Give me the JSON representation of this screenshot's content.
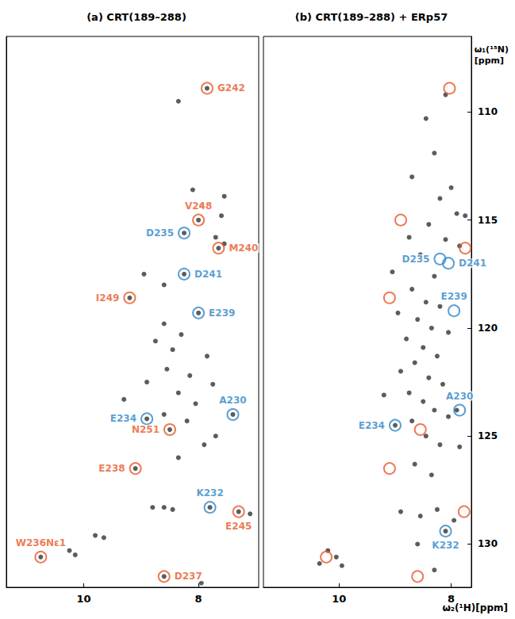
{
  "chart_data": [
    {
      "type": "scatter",
      "title": "(a) CRT(189–288)",
      "xlim": [
        11.35,
        6.95
      ],
      "xticks": [
        10,
        8
      ],
      "ylim": [
        106.5,
        132
      ],
      "yticks": [
        110,
        115,
        120,
        125,
        130
      ],
      "tick_labels": "x",
      "grid": false,
      "series": [
        {
          "color": "#333333",
          "marker": "circle",
          "values": [
            [
              7.85,
              108.9
            ],
            [
              8.35,
              109.5
            ],
            [
              8.1,
              113.6
            ],
            [
              7.55,
              113.9
            ],
            [
              7.95,
              114.3
            ],
            [
              7.6,
              114.8
            ],
            [
              8.0,
              115.0
            ],
            [
              8.25,
              115.6
            ],
            [
              7.7,
              115.8
            ],
            [
              7.65,
              116.3
            ],
            [
              7.55,
              116.1
            ],
            [
              8.95,
              117.5
            ],
            [
              8.25,
              117.5
            ],
            [
              8.6,
              118.0
            ],
            [
              9.2,
              118.6
            ],
            [
              8.0,
              119.3
            ],
            [
              8.6,
              119.8
            ],
            [
              8.3,
              120.3
            ],
            [
              8.75,
              120.6
            ],
            [
              8.45,
              121.0
            ],
            [
              7.85,
              121.3
            ],
            [
              8.55,
              121.9
            ],
            [
              8.15,
              122.2
            ],
            [
              7.75,
              122.6
            ],
            [
              8.9,
              122.5
            ],
            [
              8.35,
              123.0
            ],
            [
              9.3,
              123.3
            ],
            [
              8.05,
              123.5
            ],
            [
              8.9,
              124.2
            ],
            [
              7.4,
              124.0
            ],
            [
              8.6,
              124.0
            ],
            [
              8.2,
              124.3
            ],
            [
              8.5,
              124.7
            ],
            [
              7.7,
              125.0
            ],
            [
              7.9,
              125.4
            ],
            [
              9.1,
              126.5
            ],
            [
              8.35,
              126.0
            ],
            [
              8.8,
              128.3
            ],
            [
              8.6,
              128.3
            ],
            [
              8.45,
              128.4
            ],
            [
              7.8,
              128.3
            ],
            [
              7.3,
              128.5
            ],
            [
              7.1,
              128.6
            ],
            [
              9.8,
              129.6
            ],
            [
              9.65,
              129.7
            ],
            [
              10.75,
              130.6
            ],
            [
              10.25,
              130.3
            ],
            [
              10.15,
              130.5
            ],
            [
              8.6,
              131.5
            ],
            [
              7.95,
              131.8
            ]
          ]
        }
      ],
      "annotations": [
        {
          "text": "G242",
          "x": 7.85,
          "y": 108.9,
          "color": "#e8582a"
        },
        {
          "text": "V248",
          "x": 8.0,
          "y": 115.0,
          "color": "#e8582a"
        },
        {
          "text": "D235",
          "x": 8.25,
          "y": 115.6,
          "color": "#2f86c8"
        },
        {
          "text": "M240",
          "x": 7.65,
          "y": 116.3,
          "color": "#e8582a"
        },
        {
          "text": "D241",
          "x": 8.25,
          "y": 117.5,
          "color": "#2f86c8"
        },
        {
          "text": "I249",
          "x": 9.2,
          "y": 118.6,
          "color": "#e8582a"
        },
        {
          "text": "E239",
          "x": 8.0,
          "y": 119.3,
          "color": "#2f86c8"
        },
        {
          "text": "A230",
          "x": 7.4,
          "y": 124.0,
          "color": "#2f86c8"
        },
        {
          "text": "E234",
          "x": 8.9,
          "y": 124.2,
          "color": "#2f86c8"
        },
        {
          "text": "N251",
          "x": 8.5,
          "y": 124.7,
          "color": "#e8582a"
        },
        {
          "text": "E238",
          "x": 9.1,
          "y": 126.5,
          "color": "#e8582a"
        },
        {
          "text": "K232",
          "x": 7.8,
          "y": 128.3,
          "color": "#2f86c8"
        },
        {
          "text": "E245",
          "x": 7.3,
          "y": 128.5,
          "color": "#e8582a"
        },
        {
          "text": "W236Nε1",
          "x": 10.75,
          "y": 130.6,
          "color": "#e8582a"
        },
        {
          "text": "D237",
          "x": 8.6,
          "y": 131.5,
          "color": "#e8582a"
        }
      ]
    },
    {
      "type": "scatter",
      "title": "(b) CRT(189–288) + ERp57",
      "xlabel": "ω₂(¹H)[ppm]",
      "ylabel": "ω₁(¹⁵N)\n[ppm]",
      "xlim": [
        11.35,
        7.64
      ],
      "xticks": [
        10,
        8
      ],
      "ylim": [
        106.5,
        132
      ],
      "yticks": [
        110,
        115,
        120,
        125,
        130
      ],
      "grid": false,
      "series": [
        {
          "color": "#333333",
          "marker": "circle",
          "values": [
            [
              10.2,
              130.3
            ],
            [
              10.05,
              130.6
            ],
            [
              9.95,
              131.0
            ],
            [
              10.35,
              130.9
            ],
            [
              8.1,
              109.2
            ],
            [
              8.45,
              110.3
            ],
            [
              8.3,
              111.9
            ],
            [
              8.7,
              113.0
            ],
            [
              8.0,
              113.5
            ],
            [
              8.2,
              114.0
            ],
            [
              7.75,
              114.8
            ],
            [
              7.9,
              114.7
            ],
            [
              8.4,
              115.2
            ],
            [
              8.75,
              115.8
            ],
            [
              8.1,
              115.9
            ],
            [
              7.85,
              116.2
            ],
            [
              8.55,
              116.6
            ],
            [
              9.05,
              117.4
            ],
            [
              8.3,
              117.6
            ],
            [
              8.7,
              118.2
            ],
            [
              8.45,
              118.8
            ],
            [
              8.2,
              119.0
            ],
            [
              8.95,
              119.3
            ],
            [
              8.6,
              119.6
            ],
            [
              8.35,
              120.0
            ],
            [
              8.05,
              120.2
            ],
            [
              8.8,
              120.5
            ],
            [
              8.5,
              120.9
            ],
            [
              8.25,
              121.3
            ],
            [
              8.65,
              121.6
            ],
            [
              8.9,
              122.0
            ],
            [
              8.4,
              122.3
            ],
            [
              8.15,
              122.6
            ],
            [
              8.75,
              123.0
            ],
            [
              8.5,
              123.4
            ],
            [
              9.2,
              123.1
            ],
            [
              8.3,
              123.8
            ],
            [
              8.05,
              124.1
            ],
            [
              8.7,
              124.3
            ],
            [
              9.0,
              124.5
            ],
            [
              8.45,
              125.0
            ],
            [
              8.2,
              125.4
            ],
            [
              7.85,
              125.5
            ],
            [
              8.65,
              126.3
            ],
            [
              8.35,
              126.8
            ],
            [
              8.9,
              128.5
            ],
            [
              8.55,
              128.7
            ],
            [
              8.25,
              128.4
            ],
            [
              8.1,
              129.4
            ],
            [
              7.95,
              128.9
            ],
            [
              8.6,
              130.0
            ],
            [
              8.3,
              131.2
            ],
            [
              7.9,
              123.8
            ]
          ]
        }
      ],
      "circles": [
        {
          "x": 8.03,
          "y": 108.9,
          "color": "#e8582a"
        },
        {
          "x": 8.9,
          "y": 115.0,
          "color": "#e8582a"
        },
        {
          "x": 7.75,
          "y": 116.3,
          "color": "#e8582a"
        },
        {
          "x": 9.1,
          "y": 118.6,
          "color": "#e8582a"
        },
        {
          "x": 8.55,
          "y": 124.7,
          "color": "#e8582a"
        },
        {
          "x": 9.1,
          "y": 126.5,
          "color": "#e8582a"
        },
        {
          "x": 7.77,
          "y": 128.5,
          "color": "#e8582a"
        },
        {
          "x": 10.23,
          "y": 130.6,
          "color": "#e8582a"
        },
        {
          "x": 8.6,
          "y": 131.5,
          "color": "#e8582a"
        }
      ],
      "annotations": [
        {
          "text": "D235",
          "x": 8.2,
          "y": 116.8,
          "color": "#2f86c8"
        },
        {
          "text": "D241",
          "x": 8.05,
          "y": 117.0,
          "color": "#2f86c8"
        },
        {
          "text": "E239",
          "x": 7.95,
          "y": 119.2,
          "color": "#2f86c8"
        },
        {
          "text": "A230",
          "x": 7.85,
          "y": 123.8,
          "color": "#2f86c8"
        },
        {
          "text": "E234",
          "x": 9.0,
          "y": 124.5,
          "color": "#2f86c8"
        },
        {
          "text": "K232",
          "x": 8.1,
          "y": 129.4,
          "color": "#2f86c8"
        }
      ]
    }
  ]
}
